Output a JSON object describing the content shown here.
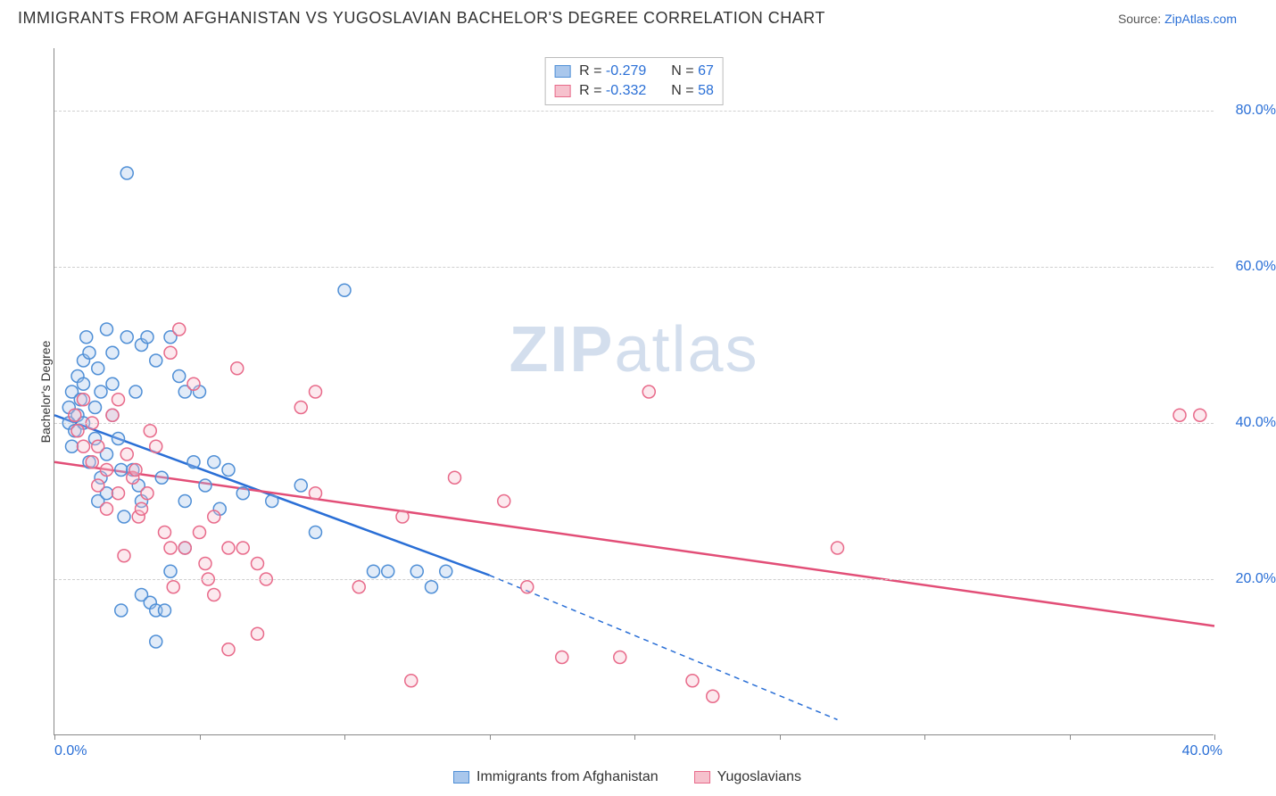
{
  "title": "IMMIGRANTS FROM AFGHANISTAN VS YUGOSLAVIAN BACHELOR'S DEGREE CORRELATION CHART",
  "source_prefix": "Source: ",
  "source_link": "ZipAtlas.com",
  "watermark": "ZIPatlas",
  "chart": {
    "type": "scatter",
    "ylabel": "Bachelor's Degree",
    "xlim": [
      0,
      40
    ],
    "ylim": [
      0,
      88
    ],
    "y_ticks": [
      20,
      40,
      60,
      80
    ],
    "y_tick_labels": [
      "20.0%",
      "40.0%",
      "60.0%",
      "80.0%"
    ],
    "x_ticks": [
      0,
      5,
      10,
      15,
      20,
      25,
      30,
      35,
      40
    ],
    "x_tick_labels_shown": {
      "0": "0.0%",
      "40": "40.0%"
    },
    "grid_color": "#d0d0d0",
    "axis_color": "#888888",
    "background_color": "#ffffff",
    "label_fontsize": 14,
    "tick_fontsize": 16,
    "tick_color": "#2a6fd6",
    "marker_radius": 7,
    "marker_stroke_width": 1.5,
    "marker_fill_opacity": 0.35,
    "reg_line_width": 2.5
  },
  "series": [
    {
      "name": "Immigrants from Afghanistan",
      "fill_color": "#a9c7ec",
      "stroke_color": "#4f8fd6",
      "line_color": "#2a6fd6",
      "R": "-0.279",
      "N": "67",
      "reg_line": {
        "x1": 0,
        "y1": 41,
        "x2": 15,
        "y2": 20.5,
        "extend_x2": 27,
        "extend_y2": 2
      },
      "points": [
        [
          0.5,
          40
        ],
        [
          0.5,
          42
        ],
        [
          0.6,
          44
        ],
        [
          0.7,
          39
        ],
        [
          0.6,
          37
        ],
        [
          0.8,
          41
        ],
        [
          0.8,
          46
        ],
        [
          0.9,
          43
        ],
        [
          1.0,
          48
        ],
        [
          1.0,
          45
        ],
        [
          1.0,
          40
        ],
        [
          1.1,
          51
        ],
        [
          1.2,
          49
        ],
        [
          1.2,
          35
        ],
        [
          1.4,
          38
        ],
        [
          1.4,
          42
        ],
        [
          1.5,
          47
        ],
        [
          1.5,
          30
        ],
        [
          1.6,
          33
        ],
        [
          1.6,
          44
        ],
        [
          1.8,
          52
        ],
        [
          1.8,
          36
        ],
        [
          1.8,
          31
        ],
        [
          2.0,
          45
        ],
        [
          2.0,
          41
        ],
        [
          2.0,
          49
        ],
        [
          2.2,
          38
        ],
        [
          2.3,
          34
        ],
        [
          2.3,
          16
        ],
        [
          2.4,
          28
        ],
        [
          2.5,
          51
        ],
        [
          2.5,
          72
        ],
        [
          2.7,
          34
        ],
        [
          2.8,
          44
        ],
        [
          2.9,
          32
        ],
        [
          3.0,
          50
        ],
        [
          3.0,
          30
        ],
        [
          3.0,
          18
        ],
        [
          3.2,
          51
        ],
        [
          3.3,
          17
        ],
        [
          3.5,
          48
        ],
        [
          3.5,
          16
        ],
        [
          3.5,
          12
        ],
        [
          3.7,
          33
        ],
        [
          3.8,
          16
        ],
        [
          4.0,
          51
        ],
        [
          4.0,
          21
        ],
        [
          4.3,
          46
        ],
        [
          4.5,
          44
        ],
        [
          4.5,
          24
        ],
        [
          4.5,
          30
        ],
        [
          4.8,
          35
        ],
        [
          5.0,
          44
        ],
        [
          5.2,
          32
        ],
        [
          5.5,
          35
        ],
        [
          5.7,
          29
        ],
        [
          6.0,
          34
        ],
        [
          6.5,
          31
        ],
        [
          7.5,
          30
        ],
        [
          8.5,
          32
        ],
        [
          9.0,
          26
        ],
        [
          10.0,
          57
        ],
        [
          11.0,
          21
        ],
        [
          11.5,
          21
        ],
        [
          12.5,
          21
        ],
        [
          13.0,
          19
        ],
        [
          13.5,
          21
        ]
      ]
    },
    {
      "name": "Yugoslavians",
      "fill_color": "#f6c1cd",
      "stroke_color": "#e86a8a",
      "line_color": "#e24e77",
      "R": "-0.332",
      "N": "58",
      "reg_line": {
        "x1": 0,
        "y1": 35,
        "x2": 40,
        "y2": 14
      },
      "points": [
        [
          0.7,
          41
        ],
        [
          0.8,
          39
        ],
        [
          1.0,
          37
        ],
        [
          1.0,
          43
        ],
        [
          1.3,
          40
        ],
        [
          1.3,
          35
        ],
        [
          1.5,
          37
        ],
        [
          1.5,
          32
        ],
        [
          1.8,
          34
        ],
        [
          1.8,
          29
        ],
        [
          2.0,
          41
        ],
        [
          2.2,
          31
        ],
        [
          2.2,
          43
        ],
        [
          2.4,
          23
        ],
        [
          2.5,
          36
        ],
        [
          2.7,
          33
        ],
        [
          2.8,
          34
        ],
        [
          2.9,
          28
        ],
        [
          3.0,
          29
        ],
        [
          3.2,
          31
        ],
        [
          3.3,
          39
        ],
        [
          3.5,
          37
        ],
        [
          3.8,
          26
        ],
        [
          4.0,
          24
        ],
        [
          4.0,
          49
        ],
        [
          4.1,
          19
        ],
        [
          4.3,
          52
        ],
        [
          4.5,
          24
        ],
        [
          4.8,
          45
        ],
        [
          5.0,
          26
        ],
        [
          5.2,
          22
        ],
        [
          5.3,
          20
        ],
        [
          5.5,
          28
        ],
        [
          5.5,
          18
        ],
        [
          6.0,
          24
        ],
        [
          6.0,
          11
        ],
        [
          6.3,
          47
        ],
        [
          6.5,
          24
        ],
        [
          7.0,
          22
        ],
        [
          7.0,
          13
        ],
        [
          7.3,
          20
        ],
        [
          8.5,
          42
        ],
        [
          9.0,
          44
        ],
        [
          9.0,
          31
        ],
        [
          10.5,
          19
        ],
        [
          12.0,
          28
        ],
        [
          12.3,
          7
        ],
        [
          13.8,
          33
        ],
        [
          15.5,
          30
        ],
        [
          16.3,
          19
        ],
        [
          17.5,
          10
        ],
        [
          19.5,
          10
        ],
        [
          20.5,
          44
        ],
        [
          22.0,
          7
        ],
        [
          22.7,
          5
        ],
        [
          27.0,
          24
        ],
        [
          38.8,
          41
        ],
        [
          39.5,
          41
        ]
      ]
    }
  ],
  "legend_top_labels": {
    "R_prefix": "R = ",
    "N_prefix": "N = "
  },
  "legend_bottom": [
    "Immigrants from Afghanistan",
    "Yugoslavians"
  ]
}
